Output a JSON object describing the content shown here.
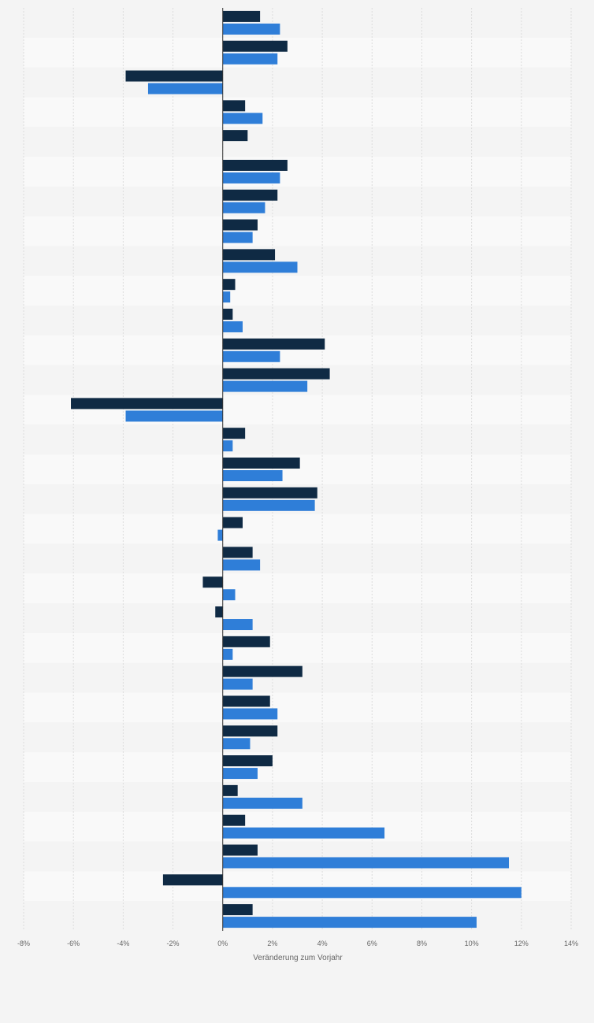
{
  "chart_data": {
    "type": "bar",
    "orientation": "horizontal",
    "xlabel": "Veränderung zum Vorjahr",
    "xlim": [
      -8,
      14
    ],
    "x_ticks": [
      "-8%",
      "-6%",
      "-4%",
      "-2%",
      "0%",
      "2%",
      "4%",
      "6%",
      "8%",
      "10%",
      "12%",
      "14%"
    ],
    "grid": true,
    "series": [
      {
        "color": "#0f2a44",
        "values": [
          1.5,
          2.6,
          -3.9,
          0.9,
          1.0,
          2.6,
          2.2,
          1.4,
          2.1,
          0.5,
          0.4,
          4.1,
          4.3,
          -6.1,
          0.9,
          3.1,
          3.8,
          0.8,
          1.2,
          -0.8,
          -0.3,
          1.9,
          3.2,
          1.9,
          2.2,
          2.0,
          0.6,
          0.9,
          1.4,
          -2.4,
          1.2
        ]
      },
      {
        "color": "#2f7ed8",
        "values": [
          2.3,
          2.2,
          -3.0,
          1.6,
          0,
          2.3,
          1.7,
          1.2,
          3.0,
          0.3,
          0.8,
          2.3,
          3.4,
          -3.9,
          0.4,
          2.4,
          3.7,
          -0.2,
          1.5,
          0.5,
          1.2,
          0.4,
          1.2,
          2.2,
          1.1,
          1.4,
          3.2,
          6.5,
          11.5,
          12.0,
          10.2
        ]
      }
    ]
  }
}
